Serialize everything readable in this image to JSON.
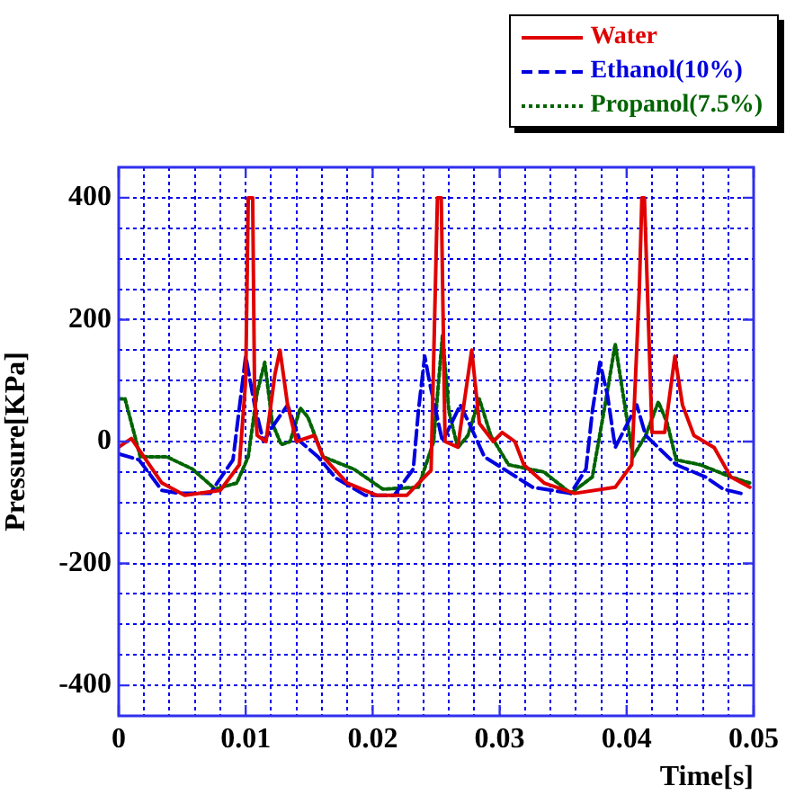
{
  "chart_data": {
    "type": "line",
    "xlabel": "Time[s]",
    "ylabel": "Pressure[KPa]",
    "xlim": [
      0,
      0.05
    ],
    "ylim": [
      -450,
      450
    ],
    "xticks": [
      0,
      {
        "value": 0.002,
        "label": null
      },
      {
        "value": 0.004,
        "label": null
      },
      {
        "value": 0.006,
        "label": null
      },
      {
        "value": 0.008,
        "label": null
      },
      0.01,
      {
        "value": 0.012,
        "label": null
      },
      {
        "value": 0.014,
        "label": null
      },
      {
        "value": 0.016,
        "label": null
      },
      {
        "value": 0.018,
        "label": null
      },
      0.02,
      {
        "value": 0.022,
        "label": null
      },
      {
        "value": 0.024,
        "label": null
      },
      {
        "value": 0.026,
        "label": null
      },
      {
        "value": 0.028,
        "label": null
      },
      0.03,
      {
        "value": 0.032,
        "label": null
      },
      {
        "value": 0.034,
        "label": null
      },
      {
        "value": 0.036,
        "label": null
      },
      {
        "value": 0.038,
        "label": null
      },
      0.04,
      {
        "value": 0.042,
        "label": null
      },
      {
        "value": 0.044,
        "label": null
      },
      {
        "value": 0.046,
        "label": null
      },
      {
        "value": 0.048,
        "label": null
      },
      0.05
    ],
    "yticks": [
      {
        "value": -450,
        "label": null
      },
      -400,
      {
        "value": -350,
        "label": null
      },
      {
        "value": -300,
        "label": null
      },
      {
        "value": -250,
        "label": null
      },
      -200,
      {
        "value": -150,
        "label": null
      },
      {
        "value": -100,
        "label": null
      },
      {
        "value": -50,
        "label": null
      },
      0,
      {
        "value": 50,
        "label": null
      },
      {
        "value": 100,
        "label": null
      },
      {
        "value": 150,
        "label": null
      },
      200,
      {
        "value": 250,
        "label": null
      },
      {
        "value": 300,
        "label": null
      },
      {
        "value": 350,
        "label": null
      },
      400,
      {
        "value": 450,
        "label": null
      }
    ],
    "grid": true,
    "legend": "top right",
    "marker": "none",
    "series": [
      {
        "name": "Water",
        "color": "#e00000",
        "line_style": "solid",
        "x": [
          0,
          0.001,
          0.0034,
          0.0052,
          0.008,
          0.0095,
          0.01,
          0.0102,
          0.01055,
          0.0107,
          0.0109,
          0.0116,
          0.0123,
          0.0127,
          0.0133,
          0.014,
          0.0154,
          0.0161,
          0.018,
          0.0203,
          0.0227,
          0.0246,
          0.0251,
          0.0254,
          0.0257,
          0.0267,
          0.0278,
          0.0284,
          0.0295,
          0.0302,
          0.0312,
          0.0319,
          0.0335,
          0.0359,
          0.0391,
          0.0404,
          0.041,
          0.0412,
          0.0414,
          0.042,
          0.043,
          0.0438,
          0.0444,
          0.0453,
          0.0469,
          0.0482,
          0.0497
        ],
        "values": [
          -9,
          5,
          -68,
          -88,
          -80,
          -38,
          100,
          400,
          400,
          80,
          10,
          0,
          110,
          150,
          60,
          0,
          10,
          -25,
          -68,
          -88,
          -88,
          -47,
          400,
          400,
          0,
          -9,
          150,
          30,
          0,
          15,
          0,
          -38,
          -68,
          -85,
          -75,
          -38,
          250,
          400,
          400,
          15,
          15,
          140,
          60,
          10,
          -10,
          -58,
          -75
        ]
      },
      {
        "name": "Ethanol(10%)",
        "color": "#0000e0",
        "line_style": "dashed",
        "x": [
          0,
          0.0016,
          0.0034,
          0.0048,
          0.0072,
          0.009,
          0.01,
          0.0107,
          0.0114,
          0.0123,
          0.0133,
          0.0143,
          0.0157,
          0.0171,
          0.0194,
          0.0217,
          0.0232,
          0.0236,
          0.0241,
          0.0245,
          0.0255,
          0.0269,
          0.0276,
          0.0288,
          0.0307,
          0.0326,
          0.0356,
          0.0368,
          0.0373,
          0.0379,
          0.0385,
          0.0391,
          0.0408,
          0.0415,
          0.0425,
          0.0439,
          0.0462,
          0.0476,
          0.049
        ],
        "values": [
          -20,
          -30,
          -80,
          -85,
          -85,
          -30,
          140,
          60,
          0,
          30,
          60,
          0,
          -25,
          -60,
          -88,
          -88,
          -45,
          50,
          140,
          95,
          0,
          60,
          30,
          -25,
          -50,
          -75,
          -85,
          -45,
          50,
          130,
          75,
          -10,
          60,
          10,
          -10,
          -38,
          -58,
          -78,
          -85
        ]
      },
      {
        "name": "Propanol(7.5%)",
        "color": "#006400",
        "line_style": "dotted",
        "x": [
          0,
          0.0005,
          0.0017,
          0.0038,
          0.0058,
          0.0076,
          0.0093,
          0.0102,
          0.0109,
          0.0115,
          0.0121,
          0.0128,
          0.0135,
          0.0143,
          0.0149,
          0.0161,
          0.0185,
          0.0208,
          0.0236,
          0.0248,
          0.0255,
          0.026,
          0.0267,
          0.0275,
          0.0284,
          0.0293,
          0.0307,
          0.0335,
          0.0356,
          0.0373,
          0.0383,
          0.0391,
          0.04,
          0.0405,
          0.0415,
          0.0425,
          0.0432,
          0.0439,
          0.0458,
          0.0482,
          0.0497
        ],
        "values": [
          70,
          70,
          -25,
          -25,
          -45,
          -78,
          -68,
          -25,
          80,
          130,
          30,
          -5,
          0,
          55,
          40,
          -25,
          -45,
          -78,
          -75,
          0,
          175,
          50,
          -10,
          10,
          70,
          10,
          -38,
          -50,
          -85,
          -58,
          60,
          160,
          40,
          -25,
          10,
          65,
          30,
          -30,
          -38,
          -58,
          -68
        ]
      }
    ]
  }
}
